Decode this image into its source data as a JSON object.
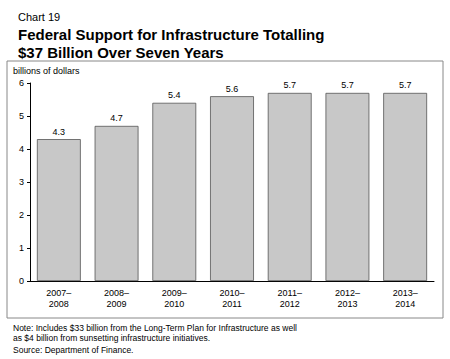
{
  "chart_data": {
    "type": "bar",
    "subtitle": "Chart 19",
    "title": "Federal Support for Infrastructure Totalling $37 Billion Over Seven Years",
    "y_label": "billions of dollars",
    "categories": [
      "2007–2008",
      "2008–2009",
      "2009–2010",
      "2010–2011",
      "2011–2012",
      "2012–2013",
      "2013–2014"
    ],
    "values": [
      4.3,
      4.7,
      5.4,
      5.6,
      5.7,
      5.7,
      5.7
    ],
    "color": "#c8c8c8",
    "ylim": [
      0,
      6
    ],
    "yticks": [
      0,
      1,
      2,
      3,
      4,
      5,
      6
    ],
    "grid": false,
    "data_labels": true,
    "note": "Note: Includes $33 billion from the Long-Term Plan for Infrastructure as well\nas $4 billion from sunsetting infrastructure initiatives.",
    "source": "Source: Department of Finance."
  }
}
